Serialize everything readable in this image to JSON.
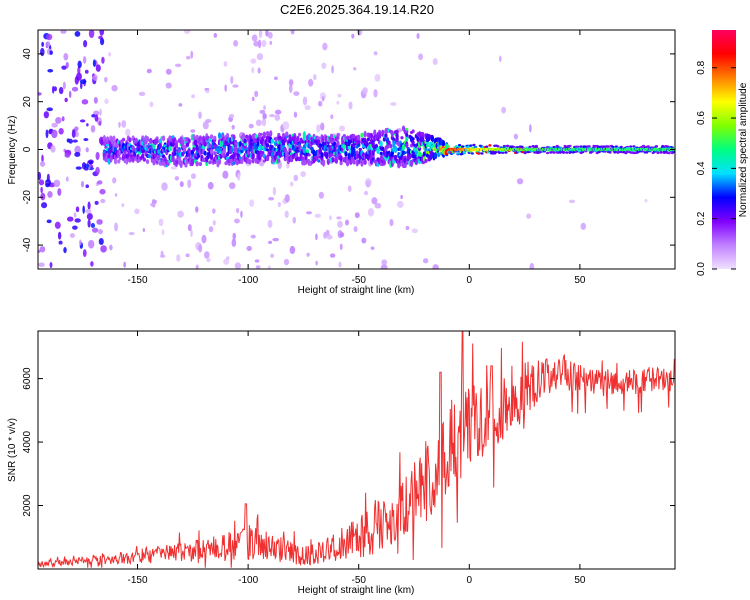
{
  "title": "C2E6.2025.364.19.14.R20",
  "chart_data": [
    {
      "type": "heatmap",
      "title": "C2E6.2025.364.19.14.R20",
      "xlabel": "Height of straight line (km)",
      "ylabel": "Frequency (Hz)",
      "xlim": [
        -195,
        93
      ],
      "ylim": [
        -50,
        50
      ],
      "xticks": [
        -150,
        -100,
        -50,
        0,
        50
      ],
      "yticks": [
        -40,
        -20,
        0,
        20,
        40
      ],
      "colorbar": {
        "label": "Normalized spectral amplitude",
        "range": [
          0,
          0.95
        ],
        "ticks": [
          0.0,
          0.2,
          0.4,
          0.6,
          0.8
        ],
        "tick_labels": [
          "0.0",
          "0.2",
          "0.4",
          "0.6",
          "0.8"
        ],
        "colormap": [
          "#f0e0ff",
          "#c080ff",
          "#8000ff",
          "#0000ff",
          "#00e0ff",
          "#00ff80",
          "#80ff00",
          "#ffff00",
          "#ff8000",
          "#ff0000",
          "#ff0060"
        ]
      },
      "band": {
        "x": [
          -165,
          -150,
          -130,
          -110,
          -90,
          -70,
          -50,
          -30,
          -20,
          -10,
          0,
          20,
          40,
          60,
          80,
          93
        ],
        "center_hz": [
          0,
          0,
          -1,
          0,
          1,
          0,
          0,
          1,
          1,
          0,
          0,
          0,
          0,
          0,
          0,
          0
        ],
        "halfwidth_hz": [
          5,
          5,
          6,
          6,
          6,
          6,
          6,
          8,
          6,
          2,
          2,
          1.5,
          1.5,
          1.5,
          1.5,
          1.5
        ],
        "amplitude": [
          0.3,
          0.35,
          0.35,
          0.35,
          0.38,
          0.35,
          0.4,
          0.4,
          0.45,
          0.85,
          0.7,
          0.55,
          0.5,
          0.5,
          0.5,
          0.5
        ]
      }
    },
    {
      "type": "line",
      "xlabel": "Height of straight line (km)",
      "ylabel": "SNR (10 * v/v)",
      "xlim": [
        -195,
        93
      ],
      "ylim": [
        0,
        7500
      ],
      "xticks": [
        -150,
        -100,
        -50,
        0,
        50
      ],
      "yticks": [
        2000,
        4000,
        6000
      ],
      "color": "#f03030",
      "series": [
        {
          "name": "SNR",
          "x": [
            -195,
            -185,
            -175,
            -165,
            -155,
            -145,
            -135,
            -125,
            -115,
            -105,
            -95,
            -85,
            -75,
            -65,
            -55,
            -45,
            -35,
            -25,
            -15,
            -5,
            0,
            5,
            15,
            25,
            35,
            45,
            55,
            65,
            75,
            85,
            93
          ],
          "y": [
            150,
            200,
            250,
            300,
            350,
            450,
            500,
            550,
            650,
            750,
            800,
            600,
            400,
            600,
            900,
            1200,
            1700,
            2400,
            3200,
            4200,
            4500,
            4800,
            5100,
            5600,
            6100,
            6100,
            5900,
            5800,
            5900,
            6000,
            5900
          ],
          "noise_amplitude": [
            100,
            100,
            120,
            150,
            200,
            250,
            300,
            350,
            400,
            500,
            500,
            400,
            300,
            400,
            600,
            800,
            1000,
            1200,
            1500,
            1600,
            1400,
            1200,
            1100,
            900,
            600,
            500,
            400,
            400,
            400,
            400,
            400
          ],
          "peaks": [
            {
              "x": -3,
              "y": 7500
            },
            {
              "x": -13,
              "y": 6200
            },
            {
              "x": 10,
              "y": 6400
            },
            {
              "x": -101,
              "y": 2050
            }
          ]
        }
      ]
    }
  ]
}
